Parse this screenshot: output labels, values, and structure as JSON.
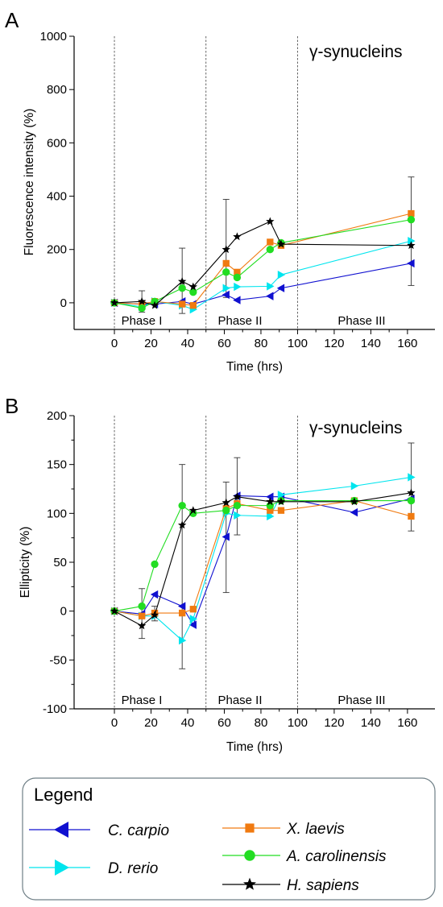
{
  "panels": [
    {
      "label": "A",
      "title": "γ-synucleins",
      "xlabel": "Time (hrs)",
      "ylabel": "Fluorescence intensity (%)",
      "xlim": [
        -22,
        175
      ],
      "ylim": [
        -100,
        1000
      ],
      "xticks": [
        "0",
        "20",
        "40",
        "60",
        "80",
        "100",
        "120",
        "140",
        "160"
      ],
      "yticks": [
        "0",
        "200",
        "400",
        "600",
        "800",
        "1000"
      ],
      "phases": [
        "Phase I",
        "Phase II",
        "Phase III"
      ]
    },
    {
      "label": "B",
      "title": "γ-synucleins",
      "xlabel": "Time (hrs)",
      "ylabel": "Ellipticity (%)",
      "xlim": [
        -22,
        175
      ],
      "ylim": [
        -100,
        200
      ],
      "xticks": [
        "0",
        "20",
        "40",
        "60",
        "80",
        "100",
        "120",
        "140",
        "160"
      ],
      "yticks": [
        "-100",
        "-50",
        "0",
        "50",
        "100",
        "150",
        "200"
      ],
      "phases": [
        "Phase I",
        "Phase II",
        "Phase III"
      ]
    }
  ],
  "legend": {
    "title": "Legend",
    "entries": [
      "C. carpio",
      "D. rerio",
      "X. laevis",
      "A. carolinensis",
      "H. sapiens"
    ]
  },
  "chart_data": [
    {
      "type": "line",
      "title": "γ-synucleins",
      "xlabel": "Time (hrs)",
      "ylabel": "Fluorescence intensity (%)",
      "xlim": [
        -22,
        175
      ],
      "ylim": [
        -100,
        1000
      ],
      "phase_boundaries": [
        0,
        50,
        100
      ],
      "series": [
        {
          "name": "C. carpio",
          "color": "#1010d0",
          "marker": "triangle-left",
          "x": [
            0,
            15,
            22,
            37,
            43,
            61,
            67,
            85,
            91,
            162
          ],
          "y": [
            0,
            -5,
            -5,
            5,
            -5,
            30,
            10,
            25,
            55,
            148
          ]
        },
        {
          "name": "D. rerio",
          "color": "#00e5ee",
          "marker": "triangle-right",
          "x": [
            0,
            15,
            22,
            37,
            43,
            61,
            67,
            85,
            91,
            162
          ],
          "y": [
            0,
            -15,
            5,
            -10,
            -25,
            55,
            60,
            62,
            105,
            232
          ]
        },
        {
          "name": "X. laevis",
          "color": "#f07a10",
          "marker": "square",
          "x": [
            0,
            15,
            22,
            37,
            43,
            61,
            67,
            85,
            91,
            162
          ],
          "y": [
            0,
            -5,
            5,
            -5,
            -10,
            148,
            115,
            228,
            215,
            335
          ]
        },
        {
          "name": "A. carolinensis",
          "color": "#22dd22",
          "marker": "circle",
          "x": [
            0,
            15,
            22,
            37,
            43,
            61,
            67,
            85,
            91,
            162
          ],
          "y": [
            0,
            -20,
            5,
            55,
            40,
            115,
            95,
            200,
            225,
            312
          ]
        },
        {
          "name": "H. sapiens",
          "color": "#000000",
          "marker": "star",
          "x": [
            0,
            15,
            22,
            37,
            43,
            61,
            67,
            85,
            91,
            162
          ],
          "y": [
            0,
            5,
            -10,
            80,
            60,
            200,
            248,
            305,
            220,
            215
          ]
        }
      ],
      "error_bars": [
        {
          "x": 15,
          "low": -35,
          "high": 45
        },
        {
          "x": 37,
          "low": -40,
          "high": 205
        },
        {
          "x": 61,
          "low": 20,
          "high": 388
        },
        {
          "x": 162,
          "low": 65,
          "high": 472
        }
      ]
    },
    {
      "type": "line",
      "title": "γ-synucleins",
      "xlabel": "Time (hrs)",
      "ylabel": "Ellipticity (%)",
      "xlim": [
        -22,
        175
      ],
      "ylim": [
        -100,
        200
      ],
      "phase_boundaries": [
        0,
        50,
        100
      ],
      "series": [
        {
          "name": "C. carpio",
          "color": "#1010d0",
          "marker": "triangle-left",
          "x": [
            0,
            15,
            22,
            37,
            43,
            61,
            67,
            85,
            91,
            131,
            162
          ],
          "y": [
            0,
            -3,
            17,
            5,
            -14,
            76,
            118,
            117,
            117,
            101,
            115
          ]
        },
        {
          "name": "D. rerio",
          "color": "#00e5ee",
          "marker": "triangle-right",
          "x": [
            0,
            15,
            22,
            37,
            43,
            61,
            67,
            85,
            91,
            131,
            162
          ],
          "y": [
            0,
            -5,
            -5,
            -30,
            -8,
            100,
            98,
            97,
            119,
            128,
            137
          ]
        },
        {
          "name": "X. laevis",
          "color": "#f07a10",
          "marker": "square",
          "x": [
            0,
            15,
            22,
            37,
            43,
            61,
            67,
            85,
            91,
            131,
            162
          ],
          "y": [
            0,
            -5,
            -2,
            -2,
            2,
            105,
            110,
            103,
            103,
            113,
            97
          ]
        },
        {
          "name": "A. carolinensis",
          "color": "#22dd22",
          "marker": "circle",
          "x": [
            0,
            15,
            22,
            37,
            43,
            61,
            67,
            85,
            91,
            131,
            162
          ],
          "y": [
            0,
            5,
            48,
            108,
            100,
            103,
            108,
            108,
            113,
            113,
            113
          ]
        },
        {
          "name": "H. sapiens",
          "color": "#000000",
          "marker": "star",
          "x": [
            0,
            15,
            22,
            37,
            43,
            61,
            67,
            85,
            91,
            131,
            162
          ],
          "y": [
            0,
            -15,
            -4,
            88,
            103,
            111,
            117,
            112,
            112,
            112,
            121
          ]
        }
      ],
      "error_bars": [
        {
          "x": 15,
          "low": -28,
          "high": 23
        },
        {
          "x": 22,
          "low": -10,
          "high": 5
        },
        {
          "x": 37,
          "low": -59,
          "high": 150
        },
        {
          "x": 61,
          "low": 19,
          "high": 132
        },
        {
          "x": 67,
          "low": 78,
          "high": 157
        },
        {
          "x": 162,
          "low": 82,
          "high": 172
        }
      ]
    }
  ]
}
